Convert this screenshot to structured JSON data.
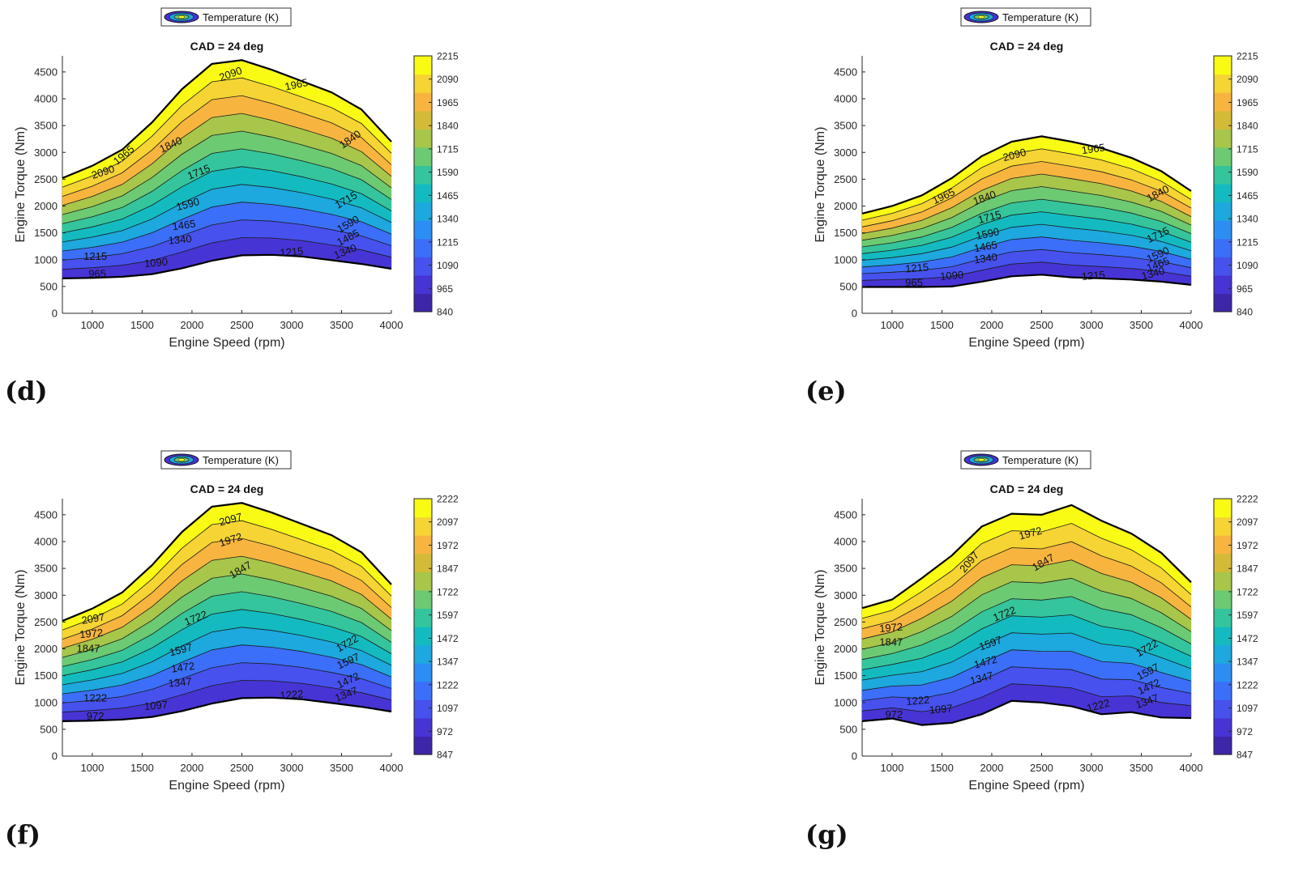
{
  "figure_labels": [
    "(d)",
    "(e)",
    "(f)",
    "(g)"
  ],
  "palette": [
    "#3e26a8",
    "#4734d4",
    "#4751ee",
    "#3b6ff9",
    "#2c8ef2",
    "#1da8de",
    "#13bbc0",
    "#34c59c",
    "#6cca72",
    "#a7c64a",
    "#d4bb37",
    "#f7b53f",
    "#f5d434",
    "#f9fb15"
  ],
  "chart_data": [
    {
      "id": "d",
      "type": "contour",
      "legend_label": "Temperature (K)",
      "title": "CAD = 24 deg",
      "xlabel": "Engine Speed (rpm)",
      "ylabel": "Engine Torque (Nm)",
      "xlim": [
        700,
        4000
      ],
      "ylim": [
        0,
        4800
      ],
      "xticks": [
        1000,
        1500,
        2000,
        2500,
        3000,
        3500,
        4000
      ],
      "yticks": [
        0,
        500,
        1000,
        1500,
        2000,
        2500,
        3000,
        3500,
        4000,
        4500
      ],
      "upper_boundary": [
        [
          700,
          2520
        ],
        [
          1000,
          2750
        ],
        [
          1300,
          3050
        ],
        [
          1600,
          3560
        ],
        [
          1900,
          4180
        ],
        [
          2200,
          4650
        ],
        [
          2500,
          4720
        ],
        [
          2800,
          4540
        ],
        [
          3100,
          4330
        ],
        [
          3400,
          4120
        ],
        [
          3700,
          3800
        ],
        [
          4000,
          3200
        ]
      ],
      "lower_boundary": [
        [
          700,
          650
        ],
        [
          1000,
          660
        ],
        [
          1300,
          680
        ],
        [
          1600,
          730
        ],
        [
          1900,
          840
        ],
        [
          2200,
          980
        ],
        [
          2500,
          1080
        ],
        [
          2800,
          1090
        ],
        [
          3100,
          1060
        ],
        [
          3400,
          990
        ],
        [
          3700,
          920
        ],
        [
          4000,
          830
        ]
      ],
      "levels": [
        840,
        965,
        1090,
        1215,
        1340,
        1465,
        1590,
        1715,
        1840,
        1965,
        2090,
        2215
      ],
      "colorbar_ticks": [
        "2215",
        "2090",
        "1965",
        "1840",
        "1715",
        "1590",
        "1465",
        "1340",
        "1215",
        "1090",
        "965",
        "840"
      ],
      "contour_labels": [
        {
          "text": "2090",
          "x": 1110,
          "y": 2620,
          "angle": -18
        },
        {
          "text": "1965",
          "x": 1320,
          "y": 2940,
          "angle": -40
        },
        {
          "text": "1840",
          "x": 1790,
          "y": 3130,
          "angle": -25
        },
        {
          "text": "1715",
          "x": 2070,
          "y": 2620,
          "angle": -22
        },
        {
          "text": "1590",
          "x": 1960,
          "y": 2020,
          "angle": -15
        },
        {
          "text": "1465",
          "x": 1920,
          "y": 1630,
          "angle": -8
        },
        {
          "text": "1340",
          "x": 1880,
          "y": 1360,
          "angle": -5
        },
        {
          "text": "1215",
          "x": 1030,
          "y": 1050,
          "angle": 0
        },
        {
          "text": "1090",
          "x": 1640,
          "y": 930,
          "angle": -5
        },
        {
          "text": "965",
          "x": 1050,
          "y": 720,
          "angle": 0
        },
        {
          "text": "2090",
          "x": 2390,
          "y": 4450,
          "angle": -20
        },
        {
          "text": "1965",
          "x": 3050,
          "y": 4250,
          "angle": -12
        },
        {
          "text": "1840",
          "x": 3590,
          "y": 3230,
          "angle": -35
        },
        {
          "text": "1715",
          "x": 3550,
          "y": 2100,
          "angle": -30
        },
        {
          "text": "1590",
          "x": 3570,
          "y": 1650,
          "angle": -30
        },
        {
          "text": "1465",
          "x": 3570,
          "y": 1400,
          "angle": -28
        },
        {
          "text": "1340",
          "x": 3540,
          "y": 1140,
          "angle": -22
        },
        {
          "text": "1215",
          "x": 3000,
          "y": 1130,
          "angle": -5
        }
      ]
    },
    {
      "id": "e",
      "type": "contour",
      "legend_label": "Temperature (K)",
      "title": "CAD = 24 deg",
      "xlabel": "Engine Speed (rpm)",
      "ylabel": "Engine Torque (Nm)",
      "xlim": [
        700,
        4000
      ],
      "ylim": [
        0,
        4800
      ],
      "xticks": [
        1000,
        1500,
        2000,
        2500,
        3000,
        3500,
        4000
      ],
      "yticks": [
        0,
        500,
        1000,
        1500,
        2000,
        2500,
        3000,
        3500,
        4000,
        4500
      ],
      "upper_boundary": [
        [
          700,
          1860
        ],
        [
          1000,
          2000
        ],
        [
          1300,
          2200
        ],
        [
          1600,
          2520
        ],
        [
          1900,
          2930
        ],
        [
          2200,
          3200
        ],
        [
          2500,
          3300
        ],
        [
          2800,
          3200
        ],
        [
          3100,
          3080
        ],
        [
          3400,
          2900
        ],
        [
          3700,
          2650
        ],
        [
          4000,
          2280
        ]
      ],
      "lower_boundary": [
        [
          700,
          490
        ],
        [
          1000,
          490
        ],
        [
          1300,
          490
        ],
        [
          1600,
          500
        ],
        [
          1900,
          590
        ],
        [
          2200,
          690
        ],
        [
          2500,
          720
        ],
        [
          2800,
          670
        ],
        [
          3100,
          650
        ],
        [
          3400,
          630
        ],
        [
          3700,
          590
        ],
        [
          4000,
          530
        ]
      ],
      "levels": [
        840,
        965,
        1090,
        1215,
        1340,
        1465,
        1590,
        1715,
        1840,
        1965,
        2090,
        2215
      ],
      "colorbar_ticks": [
        "2215",
        "2090",
        "1965",
        "1840",
        "1715",
        "1590",
        "1465",
        "1340",
        "1215",
        "1090",
        "965",
        "840"
      ],
      "contour_labels": [
        {
          "text": "965",
          "x": 1220,
          "y": 560,
          "angle": 0
        },
        {
          "text": "1215",
          "x": 1250,
          "y": 830,
          "angle": -5
        },
        {
          "text": "1090",
          "x": 1600,
          "y": 690,
          "angle": -5
        },
        {
          "text": "1340",
          "x": 1940,
          "y": 1010,
          "angle": -8
        },
        {
          "text": "1465",
          "x": 1940,
          "y": 1230,
          "angle": -10
        },
        {
          "text": "1590",
          "x": 1960,
          "y": 1470,
          "angle": -12
        },
        {
          "text": "1715",
          "x": 1980,
          "y": 1780,
          "angle": -15
        },
        {
          "text": "1840",
          "x": 1930,
          "y": 2140,
          "angle": -20
        },
        {
          "text": "1965",
          "x": 1520,
          "y": 2170,
          "angle": -25
        },
        {
          "text": "2090",
          "x": 2230,
          "y": 2940,
          "angle": -15
        },
        {
          "text": "1965",
          "x": 3020,
          "y": 3050,
          "angle": -8
        },
        {
          "text": "1840",
          "x": 3670,
          "y": 2220,
          "angle": -28
        },
        {
          "text": "1715",
          "x": 3670,
          "y": 1450,
          "angle": -25
        },
        {
          "text": "1590",
          "x": 3670,
          "y": 1080,
          "angle": -25
        },
        {
          "text": "1465",
          "x": 3670,
          "y": 900,
          "angle": -20
        },
        {
          "text": "1340",
          "x": 3620,
          "y": 730,
          "angle": -15
        },
        {
          "text": "1215",
          "x": 3020,
          "y": 690,
          "angle": -5
        }
      ]
    },
    {
      "id": "f",
      "type": "contour",
      "legend_label": "Temperature (K)",
      "title": "CAD = 24 deg",
      "xlabel": "Engine Speed (rpm)",
      "ylabel": "Engine Torque (Nm)",
      "xlim": [
        700,
        4000
      ],
      "ylim": [
        0,
        4800
      ],
      "xticks": [
        1000,
        1500,
        2000,
        2500,
        3000,
        3500,
        4000
      ],
      "yticks": [
        0,
        500,
        1000,
        1500,
        2000,
        2500,
        3000,
        3500,
        4000,
        4500
      ],
      "upper_boundary": [
        [
          700,
          2520
        ],
        [
          1000,
          2750
        ],
        [
          1300,
          3050
        ],
        [
          1600,
          3560
        ],
        [
          1900,
          4180
        ],
        [
          2200,
          4650
        ],
        [
          2500,
          4720
        ],
        [
          2800,
          4540
        ],
        [
          3100,
          4330
        ],
        [
          3400,
          4120
        ],
        [
          3700,
          3800
        ],
        [
          4000,
          3200
        ]
      ],
      "lower_boundary": [
        [
          700,
          650
        ],
        [
          1000,
          660
        ],
        [
          1300,
          680
        ],
        [
          1600,
          730
        ],
        [
          1900,
          840
        ],
        [
          2200,
          980
        ],
        [
          2500,
          1080
        ],
        [
          2800,
          1090
        ],
        [
          3100,
          1060
        ],
        [
          3400,
          990
        ],
        [
          3700,
          920
        ],
        [
          4000,
          830
        ]
      ],
      "levels": [
        847,
        972,
        1097,
        1222,
        1347,
        1472,
        1597,
        1722,
        1847,
        1972,
        2097,
        2222
      ],
      "colorbar_ticks": [
        "2222",
        "2097",
        "1972",
        "1847",
        "1722",
        "1597",
        "1472",
        "1347",
        "1222",
        "1097",
        "972",
        "847"
      ],
      "contour_labels": [
        {
          "text": "2097",
          "x": 1010,
          "y": 2550,
          "angle": -10
        },
        {
          "text": "1972",
          "x": 990,
          "y": 2270,
          "angle": -5
        },
        {
          "text": "1847",
          "x": 960,
          "y": 1990,
          "angle": 0
        },
        {
          "text": "1722",
          "x": 2040,
          "y": 2560,
          "angle": -22
        },
        {
          "text": "1597",
          "x": 1890,
          "y": 1970,
          "angle": -15
        },
        {
          "text": "1472",
          "x": 1910,
          "y": 1640,
          "angle": -8
        },
        {
          "text": "1347",
          "x": 1880,
          "y": 1360,
          "angle": -5
        },
        {
          "text": "1222",
          "x": 1030,
          "y": 1070,
          "angle": 0
        },
        {
          "text": "1097",
          "x": 1640,
          "y": 930,
          "angle": -5
        },
        {
          "text": "972",
          "x": 1030,
          "y": 730,
          "angle": 0
        },
        {
          "text": "2097",
          "x": 2390,
          "y": 4400,
          "angle": -15
        },
        {
          "text": "1972",
          "x": 2390,
          "y": 4020,
          "angle": -18
        },
        {
          "text": "1847",
          "x": 2490,
          "y": 3460,
          "angle": -30
        },
        {
          "text": "1722",
          "x": 3560,
          "y": 2090,
          "angle": -30
        },
        {
          "text": "1597",
          "x": 3570,
          "y": 1760,
          "angle": -25
        },
        {
          "text": "1472",
          "x": 3570,
          "y": 1400,
          "angle": -25
        },
        {
          "text": "1347",
          "x": 3550,
          "y": 1140,
          "angle": -22
        },
        {
          "text": "1222",
          "x": 3000,
          "y": 1130,
          "angle": -5
        }
      ]
    },
    {
      "id": "g",
      "type": "contour",
      "legend_label": "Temperature (K)",
      "title": "CAD = 24 deg",
      "xlabel": "Engine Speed (rpm)",
      "ylabel": "Engine Torque (Nm)",
      "xlim": [
        700,
        4000
      ],
      "ylim": [
        0,
        4800
      ],
      "xticks": [
        1000,
        1500,
        2000,
        2500,
        3000,
        3500,
        4000
      ],
      "yticks": [
        0,
        500,
        1000,
        1500,
        2000,
        2500,
        3000,
        3500,
        4000,
        4500
      ],
      "upper_boundary": [
        [
          700,
          2760
        ],
        [
          1000,
          2920
        ],
        [
          1300,
          3320
        ],
        [
          1600,
          3740
        ],
        [
          1900,
          4280
        ],
        [
          2200,
          4520
        ],
        [
          2500,
          4500
        ],
        [
          2800,
          4680
        ],
        [
          3100,
          4390
        ],
        [
          3400,
          4150
        ],
        [
          3700,
          3790
        ],
        [
          4000,
          3240
        ]
      ],
      "lower_boundary": [
        [
          700,
          650
        ],
        [
          1000,
          700
        ],
        [
          1300,
          580
        ],
        [
          1600,
          620
        ],
        [
          1900,
          780
        ],
        [
          2200,
          1030
        ],
        [
          2500,
          1000
        ],
        [
          2800,
          930
        ],
        [
          3100,
          780
        ],
        [
          3400,
          820
        ],
        [
          3700,
          720
        ],
        [
          4000,
          710
        ]
      ],
      "levels": [
        847,
        972,
        1097,
        1222,
        1347,
        1472,
        1597,
        1722,
        1847,
        1972,
        2097,
        2222
      ],
      "colorbar_ticks": [
        "2222",
        "2097",
        "1972",
        "1847",
        "1722",
        "1597",
        "1472",
        "1347",
        "1222",
        "1097",
        "972",
        "847"
      ],
      "contour_labels": [
        {
          "text": "972",
          "x": 1020,
          "y": 760,
          "angle": 0
        },
        {
          "text": "1222",
          "x": 1260,
          "y": 1020,
          "angle": -5
        },
        {
          "text": "1097",
          "x": 1490,
          "y": 860,
          "angle": -5
        },
        {
          "text": "1347",
          "x": 1900,
          "y": 1440,
          "angle": -15
        },
        {
          "text": "1472",
          "x": 1940,
          "y": 1740,
          "angle": -15
        },
        {
          "text": "1597",
          "x": 1990,
          "y": 2090,
          "angle": -20
        },
        {
          "text": "1722",
          "x": 2130,
          "y": 2640,
          "angle": -22
        },
        {
          "text": "1847",
          "x": 990,
          "y": 2110,
          "angle": 0
        },
        {
          "text": "1972",
          "x": 990,
          "y": 2380,
          "angle": -5
        },
        {
          "text": "2097",
          "x": 1780,
          "y": 3610,
          "angle": -50
        },
        {
          "text": "1972",
          "x": 2390,
          "y": 4140,
          "angle": -15
        },
        {
          "text": "1847",
          "x": 2520,
          "y": 3600,
          "angle": -30
        },
        {
          "text": "1722",
          "x": 3560,
          "y": 2000,
          "angle": -30
        },
        {
          "text": "1597",
          "x": 3570,
          "y": 1560,
          "angle": -28
        },
        {
          "text": "1472",
          "x": 3580,
          "y": 1280,
          "angle": -25
        },
        {
          "text": "1347",
          "x": 3560,
          "y": 1010,
          "angle": -20
        },
        {
          "text": "1222",
          "x": 3070,
          "y": 930,
          "angle": -15
        }
      ]
    }
  ]
}
